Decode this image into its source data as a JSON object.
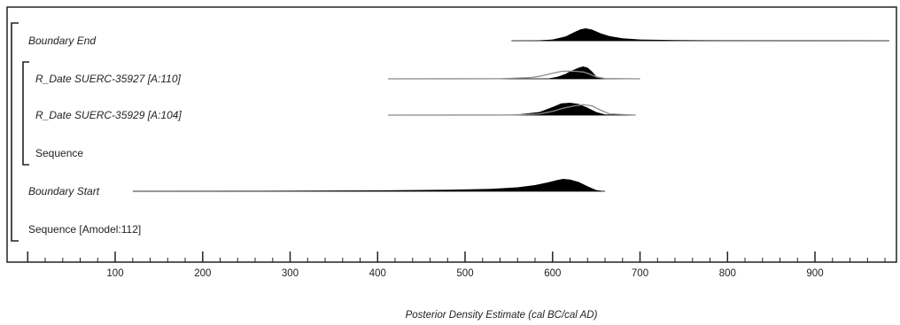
{
  "chart_data": {
    "type": "area",
    "title": "",
    "xlabel": "Posterior Density Estimate (cal BC/cal AD)",
    "ylabel": "",
    "xlim": [
      -10,
      985
    ],
    "x_ticks": [
      100,
      200,
      300,
      400,
      500,
      600,
      700,
      800,
      900
    ],
    "minor_tick_step": 20,
    "grid": false,
    "legend": "none",
    "rows": [
      {
        "label": "Boundary End",
        "italic": true,
        "indent": 1,
        "posterior": {
          "x": [
            553,
            580,
            600,
            615,
            625,
            632,
            638,
            645,
            655,
            665,
            680,
            700,
            740,
            800,
            900,
            985
          ],
          "y": [
            0,
            0.02,
            0.1,
            0.35,
            0.7,
            0.92,
            1,
            0.9,
            0.6,
            0.38,
            0.2,
            0.1,
            0.05,
            0.03,
            0.015,
            0
          ]
        }
      },
      {
        "label": "R_Date SUERC-35927 [A:110]",
        "italic": true,
        "indent": 2,
        "prior": {
          "x": [
            412,
            540,
            575,
            585,
            600,
            610,
            620,
            628,
            635,
            642,
            650,
            660,
            700
          ],
          "y": [
            0,
            0.01,
            0.1,
            0.2,
            0.45,
            0.6,
            0.62,
            0.6,
            0.55,
            0.4,
            0.15,
            0.03,
            0
          ]
        },
        "posterior": {
          "x": [
            412,
            560,
            595,
            605,
            615,
            620,
            625,
            630,
            635,
            640,
            645,
            650,
            660,
            700
          ],
          "y": [
            0,
            0,
            0.03,
            0.15,
            0.4,
            0.6,
            0.75,
            0.9,
            1,
            0.9,
            0.6,
            0.2,
            0.02,
            0
          ]
        }
      },
      {
        "label": "R_Date SUERC-35929 [A:104]",
        "italic": true,
        "indent": 2,
        "prior": {
          "x": [
            412,
            560,
            585,
            600,
            612,
            625,
            635,
            645,
            655,
            665,
            695
          ],
          "y": [
            0,
            0.01,
            0.1,
            0.3,
            0.55,
            0.75,
            0.85,
            0.75,
            0.4,
            0.1,
            0
          ]
        },
        "posterior": {
          "x": [
            412,
            520,
            560,
            585,
            600,
            610,
            620,
            630,
            640,
            650,
            660,
            695
          ],
          "y": [
            0,
            0,
            0.06,
            0.25,
            0.65,
            0.95,
            1,
            0.9,
            0.6,
            0.25,
            0.05,
            0
          ]
        }
      },
      {
        "label": "Sequence",
        "italic": false,
        "indent": 2
      },
      {
        "label": "Boundary Start",
        "italic": true,
        "indent": 1,
        "posterior": {
          "x": [
            120,
            200,
            300,
            400,
            480,
            530,
            560,
            580,
            595,
            605,
            612,
            620,
            630,
            640,
            650,
            660
          ],
          "y": [
            0,
            0.02,
            0.04,
            0.07,
            0.12,
            0.2,
            0.32,
            0.5,
            0.72,
            0.9,
            1,
            0.95,
            0.75,
            0.4,
            0.1,
            0
          ]
        }
      },
      {
        "label": "Sequence [Amodel:112]",
        "italic": false,
        "indent": 1
      }
    ]
  }
}
